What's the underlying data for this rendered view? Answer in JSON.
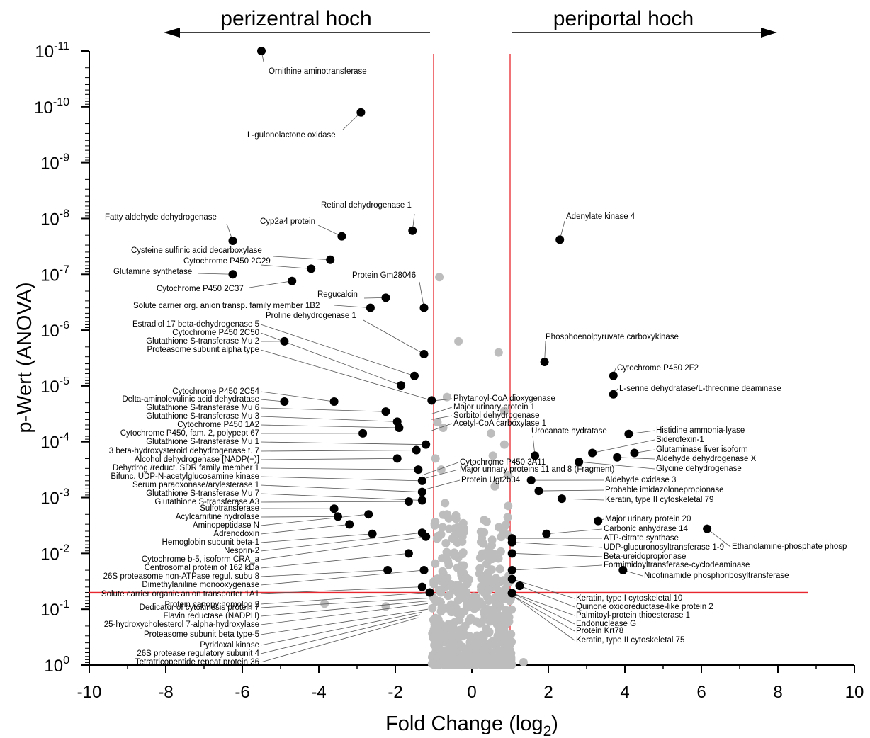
{
  "header": {
    "left_label": "perizentral hoch",
    "right_label": "periportal hoch"
  },
  "chart_data": {
    "type": "scatter",
    "title": "",
    "xlabel": "Fold Change (log",
    "xlabel_sub": "2",
    "xlabel_end": ")",
    "ylabel": "p-Wert (ANOVA)",
    "xlim": [
      -10,
      10
    ],
    "ylim_exponent": [
      0,
      -11
    ],
    "y_scale": "log (inverted)",
    "x_ticks": [
      "-10",
      "-8",
      "-6",
      "-4",
      "-2",
      "0",
      "2",
      "4",
      "6",
      "8",
      "10"
    ],
    "y_ticks": [
      {
        "base": "10",
        "exp": "0"
      },
      {
        "base": "10",
        "exp": "-1"
      },
      {
        "base": "10",
        "exp": "-2"
      },
      {
        "base": "10",
        "exp": "-3"
      },
      {
        "base": "10",
        "exp": "-4"
      },
      {
        "base": "10",
        "exp": "-5"
      },
      {
        "base": "10",
        "exp": "-6"
      },
      {
        "base": "10",
        "exp": "-7"
      },
      {
        "base": "10",
        "exp": "-8"
      },
      {
        "base": "10",
        "exp": "-9"
      },
      {
        "base": "10",
        "exp": "-10"
      },
      {
        "base": "10",
        "exp": "-11"
      }
    ],
    "thresholds": {
      "fold_change": [
        -1,
        1
      ],
      "p_value": 0.05
    },
    "colors": {
      "significant": "#000000",
      "not_significant": "#bdbdbd",
      "threshold": "#e8262e"
    },
    "points": [
      {
        "label": "Ornithine aminotransferase",
        "x": -5.5,
        "p": "1.0e-11",
        "nl": -11.0
      },
      {
        "label": "L-gulonolactone oxidase",
        "x": -2.9,
        "p": "1.3e-10",
        "nl": -9.9
      },
      {
        "label": "Retinal dehydrogenase 1",
        "x": -1.55,
        "p": "1.7e-8",
        "nl": -7.78
      },
      {
        "label": "Fatty aldehyde dehydrogenase",
        "x": -6.25,
        "p": "2.5e-8",
        "nl": -7.6
      },
      {
        "label": "Cyp2a4 protein",
        "x": -3.4,
        "p": "2.1e-8",
        "nl": -7.68
      },
      {
        "label": "Cysteine sulfinic acid decarboxylase",
        "x": -3.7,
        "p": "5.5e-8",
        "nl": -7.26
      },
      {
        "label": "Cytochrome P450 2C29",
        "x": -4.2,
        "p": "8e-8",
        "nl": -7.1
      },
      {
        "label": "Glutamine synthetase",
        "x": -6.25,
        "p": "1.0e-7",
        "nl": -7.0
      },
      {
        "label": "Cytochrome P450 2C37",
        "x": -4.7,
        "p": "1.3e-7",
        "nl": -6.88
      },
      {
        "label": "Protein Gm28046",
        "x": -1.25,
        "p": "4.0e-7",
        "nl": -6.4
      },
      {
        "label": "Regucalcin",
        "x": -2.25,
        "p": "2.6e-7",
        "nl": -6.58
      },
      {
        "label": "Solute carrier org. anion transp. family member 1B2",
        "x": -2.65,
        "p": "4.0e-7",
        "nl": -6.4
      },
      {
        "label": "Proline dehydrogenase 1",
        "x": -1.25,
        "p": "2.7e-6",
        "nl": -5.57
      },
      {
        "label": "Estradiol 17 beta-dehydrogenase 5",
        "x": -1.5,
        "p": "6.6e-6",
        "nl": -5.18
      },
      {
        "label": "Cytochrome P450 2C50",
        "x": -1.85,
        "p": "9.8e-6",
        "nl": -5.01
      },
      {
        "label": "Glutathione S-transferase Mu 2",
        "x": -4.9,
        "p": "1.6e-6",
        "nl": -5.8
      },
      {
        "label": "Proteasome subunit alpha type",
        "x": -1.05,
        "p": "1.8e-5",
        "nl": -4.74
      },
      {
        "label": "Cytochrome P450 2C54",
        "x": -3.6,
        "p": "1.9e-5",
        "nl": -4.72
      },
      {
        "label": "Delta-aminolevulinic acid dehydratase",
        "x": -4.9,
        "p": "1.9e-5",
        "nl": -4.72
      },
      {
        "label": "Glutathione S-transferase Mu 6",
        "x": -2.25,
        "p": "2.9e-5",
        "nl": -4.54
      },
      {
        "label": "Glutathione S-transferase Mu 3",
        "x": -1.95,
        "p": "4.4e-5",
        "nl": -4.36
      },
      {
        "label": "Cytochrome P450 1A2",
        "x": -1.9,
        "p": "5.6e-5",
        "nl": -4.25
      },
      {
        "label": "Cytochrome P450, fam. 2, polypept 67",
        "x": -2.85,
        "p": "7.1e-5",
        "nl": -4.15
      },
      {
        "label": "Glutathione S-transferase Mu 1",
        "x": -1.2,
        "p": "1.1e-4",
        "nl": -3.95
      },
      {
        "label": "3 beta-hydroxysteroid dehydrogenase t. 7",
        "x": -1.45,
        "p": "1.4e-4",
        "nl": -3.85
      },
      {
        "label": "Alcohol dehydrogenase [NADP(+)]",
        "x": -1.95,
        "p": "2.0e-4",
        "nl": -3.7
      },
      {
        "label": "Dehydrog./reduct. SDR family member 1",
        "x": -1.4,
        "p": "3.2e-4",
        "nl": -3.5
      },
      {
        "label": "Bifunc. UDP-N-acetylglucosamine kinase",
        "x": -1.3,
        "p": "5.0e-4",
        "nl": -3.3
      },
      {
        "label": "Serum paraoxonase/arylesterase 1",
        "x": -1.3,
        "p": "7.9e-4",
        "nl": -3.1
      },
      {
        "label": "Glutathione S-transferase Mu 7",
        "x": -1.3,
        "p": "1.1e-3",
        "nl": -2.95
      },
      {
        "label": "Glutathione S-transferase A3",
        "x": -1.65,
        "p": "1.2e-3",
        "nl": -2.93
      },
      {
        "label": "Sulfotransferase",
        "x": -3.6,
        "p": "1.6e-3",
        "nl": -2.8
      },
      {
        "label": "Acylcarnitine hydrolase",
        "x": -3.5,
        "p": "2.2e-3",
        "nl": -2.66
      },
      {
        "label": "Aminopeptidase N",
        "x": -2.7,
        "p": "2.0e-3",
        "nl": -2.7
      },
      {
        "label": "Adrenodoxin",
        "x": -3.2,
        "p": "3.0e-3",
        "nl": -2.52
      },
      {
        "label": "Hemoglobin subunit beta-1",
        "x": -2.6,
        "p": "4.5e-3",
        "nl": -2.35
      },
      {
        "label": "Nesprin-2",
        "x": -1.3,
        "p": "4.3e-3",
        "nl": -2.37
      },
      {
        "label": "Cytochrome b-5, isoform CRA_a",
        "x": -1.2,
        "p": "5.0e-3",
        "nl": -2.3
      },
      {
        "label": "Centrosomal protein of 162 kDa",
        "x": -1.65,
        "p": "1.0e-2",
        "nl": -2.0
      },
      {
        "label": "26S proteasome non-ATPase regul. subu 8",
        "x": -2.2,
        "p": "2.0e-2",
        "nl": -1.7
      },
      {
        "label": "Dimethylaniline monooxygenase",
        "x": -1.25,
        "p": "2.0e-2",
        "nl": -1.7
      },
      {
        "label": "Solute carrier organic anion transporter 1A1",
        "x": -1.3,
        "p": "4.0e-2",
        "nl": -1.4
      },
      {
        "label": "Protein canopy homolog 2",
        "x": -1.1,
        "p": "5.0e-2",
        "nl": -1.3
      },
      {
        "label": "Adenylate kinase 4",
        "x": 2.3,
        "p": "2.4e-8",
        "nl": -7.62
      },
      {
        "label": "Phosphoenolpyruvate carboxykinase",
        "x": 1.9,
        "p": "3.7e-6",
        "nl": -5.43
      },
      {
        "label": "Cytochrome P450 2F2",
        "x": 3.7,
        "p": "6.6e-6",
        "nl": -5.18
      },
      {
        "label": "L-serine dehydratase/L-threonine deaminase",
        "x": 3.7,
        "p": "1.4e-5",
        "nl": -4.85
      },
      {
        "label": "Urocanate hydratase",
        "x": 1.65,
        "p": "1.8e-4",
        "nl": -3.75
      },
      {
        "label": "Histidine ammonia-lyase",
        "x": 4.1,
        "p": "7.2e-5",
        "nl": -4.14
      },
      {
        "label": "Siderofexin-1",
        "x": 3.15,
        "p": "1.6e-4",
        "nl": -3.8
      },
      {
        "label": "Glutaminase liver isoform",
        "x": 4.25,
        "p": "1.6e-4",
        "nl": -3.8
      },
      {
        "label": "Aldehyde dehydrogenase X",
        "x": 3.8,
        "p": "1.9e-4",
        "nl": -3.72
      },
      {
        "label": "Glycine dehydrogenase",
        "x": 2.8,
        "p": "2.3e-4",
        "nl": -3.64
      },
      {
        "label": "Aldehyde oxidase 3",
        "x": 1.55,
        "p": "4.9e-4",
        "nl": -3.31
      },
      {
        "label": "Probable imidazolonepropionase",
        "x": 1.75,
        "p": "7.6e-4",
        "nl": -3.12
      },
      {
        "label": "Keratin, type II cytoskeletal 79",
        "x": 2.35,
        "p": "1.0e-3",
        "nl": -2.98
      },
      {
        "label": "Major urinary protein 20",
        "x": 3.3,
        "p": "2.6e-3",
        "nl": -2.58
      },
      {
        "label": "Ethanolamine-phosphate phosp",
        "x": 6.15,
        "p": "3.6e-3",
        "nl": -2.44
      },
      {
        "label": "Carbonic anhydrase 14",
        "x": 1.95,
        "p": "4.5e-3",
        "nl": -2.35
      },
      {
        "label": "ATP-citrate synthase",
        "x": 1.05,
        "p": "5.4e-3",
        "nl": -2.27
      },
      {
        "label": "UDP-glucuronosyltransferase 1-9",
        "x": 1.05,
        "p": "6.3e-3",
        "nl": -2.2
      },
      {
        "label": "Beta-ureidopropionase",
        "x": 1.05,
        "p": "1.0e-2",
        "nl": -2.0
      },
      {
        "label": "Formimidoyltransferase-cyclodeaminase",
        "x": 1.05,
        "p": "2.0e-2",
        "nl": -1.7
      },
      {
        "label": "Nicotinamide phosphoribosyltransferase",
        "x": 3.95,
        "p": "2.0e-2",
        "nl": -1.7
      },
      {
        "label": "Keratin, type I cytoskeletal 10",
        "x": 1.05,
        "p": "2.9e-2",
        "nl": -1.54
      },
      {
        "label": "Quinone oxidoreductase-like protein 2",
        "x": 1.25,
        "p": "3.8e-2",
        "nl": -1.42
      },
      {
        "label": "Palmitoyl-protein thioesterase 1",
        "x": 1.05,
        "p": "5.1e-2",
        "nl": -1.29
      },
      {
        "label": "Endonuclease G",
        "x": 1.05,
        "p": "5.1e-2",
        "nl": -1.29
      }
    ],
    "left_callouts": [
      {
        "label": "Phytanoyl-CoA dioxygenase",
        "x": -1.05,
        "nl": -4.73
      },
      {
        "label": "Major urinary protein 1",
        "x": -1.05,
        "nl": -4.5
      },
      {
        "label": "Sorbitol dehydrogenase",
        "x": -1.05,
        "nl": -4.4
      },
      {
        "label": "Acetyl-CoA carboxylase 1",
        "x": -1.05,
        "nl": -4.2
      },
      {
        "label": "Cytochrome P450 3A11",
        "x": -1.3,
        "nl": -3.4
      },
      {
        "label": "Major urinary proteins 11 and 8 (Fragment)",
        "x": -1.2,
        "nl": -3.35
      },
      {
        "label": "Protein Ugt2b34",
        "x": -1.2,
        "nl": -3.15
      },
      {
        "label": "Dedicator of cytokinesis protein 7",
        "x": -1.1,
        "nl": -1.2
      },
      {
        "label": "Flavin reductase (NADPH)",
        "x": -1.1,
        "nl": -1.15
      },
      {
        "label": "25-hydroxycholesterol 7-alpha-hydroxylase",
        "x": -1.15,
        "nl": -1.1
      },
      {
        "label": "Proteasome subunit beta type-5",
        "x": -1.15,
        "nl": -1.0
      },
      {
        "label": "Pyridoxal kinase",
        "x": -1.3,
        "nl": -0.95
      },
      {
        "label": "26S protease regulatory subunit 4",
        "x": -1.35,
        "nl": -0.9
      },
      {
        "label": "Tetratricopeptide repeat protein 36",
        "x": -1.4,
        "nl": -0.85
      },
      {
        "label": "Protein Krt78",
        "x": 1.05,
        "nl": -1.25
      },
      {
        "label": "Keratin, type II cytoskeletal 75",
        "x": 1.05,
        "nl": -1.25
      }
    ]
  }
}
